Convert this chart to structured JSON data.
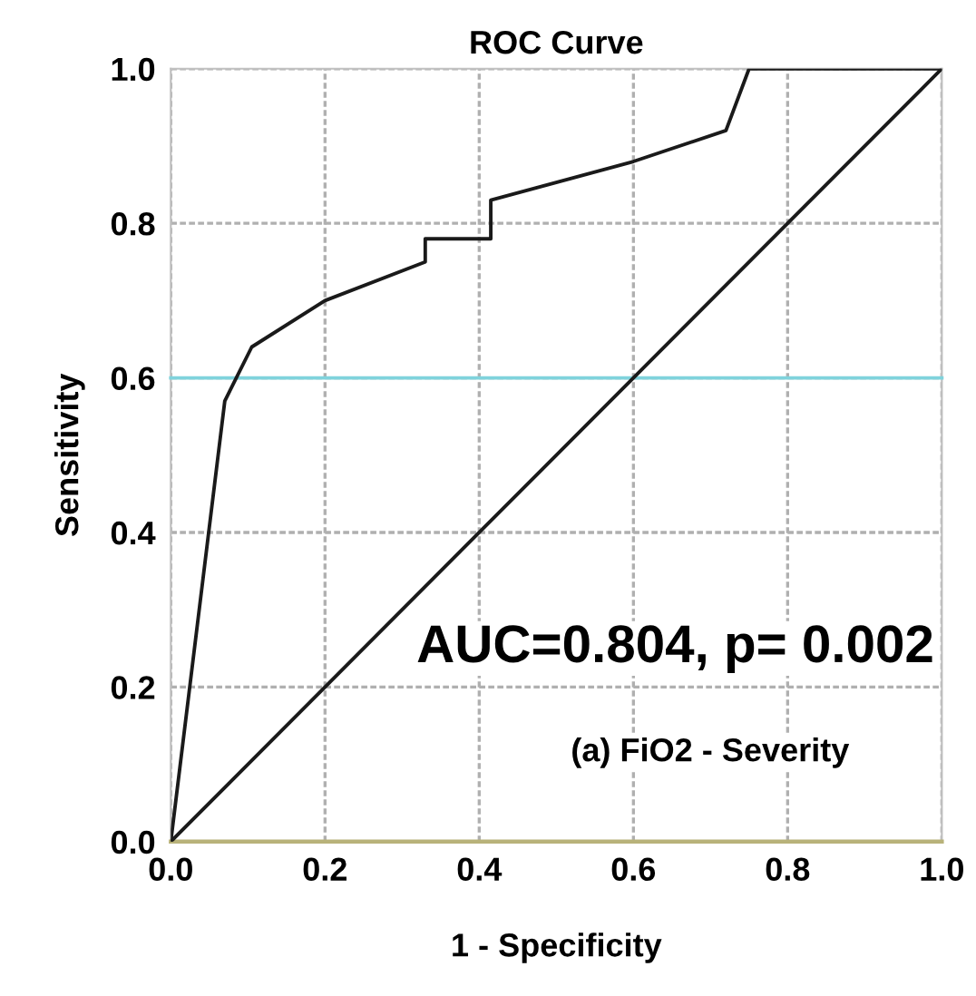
{
  "chart_data": {
    "type": "line",
    "title": "ROC Curve",
    "xlabel": "1 - Specificity",
    "ylabel": "Sensitivity",
    "series": [
      {
        "color": "#1a1a1a",
        "x": [
          0,
          0.07,
          0.105,
          0.2,
          0.33,
          0.33,
          0.415,
          0.415,
          0.6,
          0.72,
          0.75,
          1.0
        ],
        "values": [
          0,
          0.57,
          0.64,
          0.7,
          0.75,
          0.78,
          0.78,
          0.83,
          0.88,
          0.92,
          1.0,
          1.0
        ]
      },
      {
        "color": "#1a1a1a",
        "x": [
          0,
          1
        ],
        "values": [
          0,
          1
        ]
      }
    ],
    "xlim": [
      0,
      1
    ],
    "ylim": [
      0,
      1
    ],
    "xticks": [
      {
        "value": 0,
        "label": "0.0"
      },
      0.2,
      0.4,
      0.6,
      0.8,
      {
        "value": 1,
        "label": "1.0"
      }
    ],
    "yticks": [
      {
        "value": 0,
        "label": "0.0"
      },
      0.2,
      0.4,
      0.6,
      0.8,
      {
        "value": 1,
        "label": "1.0"
      }
    ],
    "grid": true,
    "marker": "none",
    "line_style": "solid",
    "ref_lines": [
      {
        "axis": "y",
        "value": 0.6,
        "color": "#7fd3dc"
      }
    ],
    "annotations": [
      "AUC=0.804, p= 0.002",
      "(a) FiO2 - Severity"
    ]
  }
}
